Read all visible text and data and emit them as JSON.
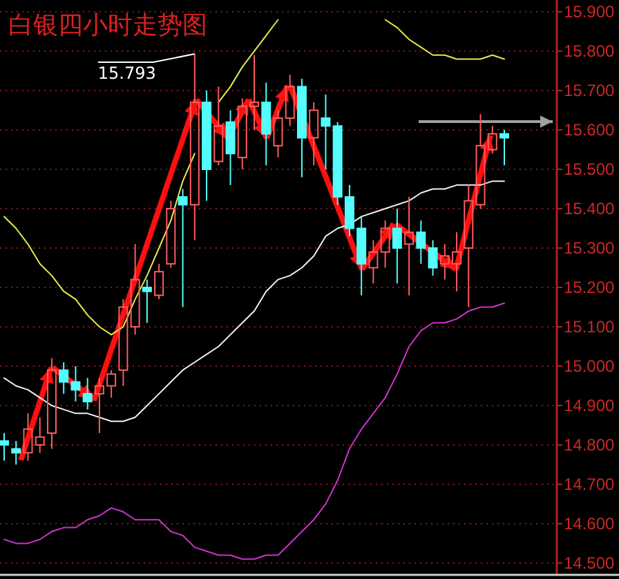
{
  "chart_data": {
    "type": "candlestick",
    "title": "白银四小时走势图",
    "categories": [
      null,
      null,
      null,
      null,
      null,
      null,
      null,
      null,
      null,
      null,
      null,
      null,
      null,
      null,
      null,
      null,
      null,
      null,
      null,
      null,
      null,
      null,
      null,
      null,
      null,
      null,
      null,
      null,
      null,
      null,
      null,
      null,
      null,
      null,
      null,
      null,
      null,
      null,
      null,
      null,
      null,
      null,
      null
    ],
    "ohlc": [
      [
        14.81,
        14.83,
        14.76,
        14.8
      ],
      [
        14.79,
        14.81,
        14.75,
        14.78
      ],
      [
        14.78,
        14.88,
        14.76,
        14.84
      ],
      [
        14.8,
        14.87,
        14.78,
        14.82
      ],
      [
        14.83,
        15.02,
        14.79,
        14.99
      ],
      [
        14.99,
        15.01,
        14.93,
        14.96
      ],
      [
        14.96,
        15.0,
        14.91,
        14.94
      ],
      [
        14.93,
        14.97,
        14.89,
        14.91
      ],
      [
        14.93,
        14.97,
        14.83,
        14.95
      ],
      [
        14.95,
        14.99,
        14.92,
        14.98
      ],
      [
        14.99,
        15.17,
        14.95,
        15.15
      ],
      [
        15.1,
        15.31,
        15.08,
        15.22
      ],
      [
        15.2,
        15.22,
        15.11,
        15.19
      ],
      [
        15.18,
        15.26,
        15.17,
        15.24
      ],
      [
        15.26,
        15.42,
        15.25,
        15.4
      ],
      [
        15.43,
        15.45,
        15.15,
        15.41
      ],
      [
        15.41,
        15.793,
        15.32,
        15.67
      ],
      [
        15.67,
        15.7,
        15.42,
        15.5
      ],
      [
        15.52,
        15.71,
        15.51,
        15.61
      ],
      [
        15.62,
        15.65,
        15.46,
        15.54
      ],
      [
        15.53,
        15.68,
        15.5,
        15.66
      ],
      [
        15.66,
        15.79,
        15.6,
        15.67
      ],
      [
        15.67,
        15.72,
        15.51,
        15.59
      ],
      [
        15.56,
        15.65,
        15.53,
        15.63
      ],
      [
        15.63,
        15.74,
        15.61,
        15.71
      ],
      [
        15.71,
        15.73,
        15.48,
        15.58
      ],
      [
        15.58,
        15.67,
        15.51,
        15.65
      ],
      [
        15.63,
        15.69,
        15.5,
        15.61
      ],
      [
        15.61,
        15.62,
        15.41,
        15.43
      ],
      [
        15.43,
        15.46,
        15.33,
        15.35
      ],
      [
        15.35,
        15.38,
        15.18,
        15.26
      ],
      [
        15.25,
        15.32,
        15.21,
        15.29
      ],
      [
        15.29,
        15.37,
        15.25,
        15.35
      ],
      [
        15.35,
        15.4,
        15.21,
        15.3
      ],
      [
        15.31,
        15.43,
        15.18,
        15.34
      ],
      [
        15.34,
        15.37,
        15.26,
        15.3
      ],
      [
        15.3,
        15.32,
        15.23,
        15.25
      ],
      [
        15.26,
        15.31,
        15.22,
        15.28
      ],
      [
        15.26,
        15.34,
        15.19,
        15.29
      ],
      [
        15.3,
        15.46,
        15.15,
        15.42
      ],
      [
        15.41,
        15.64,
        15.4,
        15.56
      ],
      [
        15.55,
        15.61,
        15.54,
        15.59
      ],
      [
        15.59,
        15.6,
        15.51,
        15.58
      ]
    ],
    "colors": [
      "#54fcfc",
      "#54fcfc",
      "#ff5c5c",
      "#ff5c5c",
      "#ff5c5c",
      "#54fcfc",
      "#54fcfc",
      "#54fcfc",
      "#ff5c5c",
      "#ff5c5c",
      "#ff5c5c",
      "#ff5c5c",
      "#54fcfc",
      "#ff5c5c",
      "#ff5c5c",
      "#54fcfc",
      "#ff5c5c",
      "#54fcfc",
      "#ff5c5c",
      "#54fcfc",
      "#ff5c5c",
      "#ff5c5c",
      "#54fcfc",
      "#ff5c5c",
      "#ff5c5c",
      "#54fcfc",
      "#ff5c5c",
      "#54fcfc",
      "#54fcfc",
      "#54fcfc",
      "#54fcfc",
      "#ff5c5c",
      "#ff5c5c",
      "#54fcfc",
      "#ff5c5c",
      "#54fcfc",
      "#54fcfc",
      "#ff5c5c",
      "#ff5c5c",
      "#ff5c5c",
      "#ff5c5c",
      "#ff5c5c",
      "#54fcfc"
    ],
    "series": [
      {
        "type": "line",
        "color": "#e8e84c",
        "values": [
          15.38,
          15.35,
          15.31,
          15.26,
          15.23,
          15.19,
          15.17,
          15.13,
          15.1,
          15.08,
          15.1,
          15.17,
          15.23,
          15.3,
          15.37,
          15.47,
          15.54,
          null,
          15.67,
          15.71,
          15.76,
          15.8,
          15.84,
          15.88,
          null,
          null,
          null,
          null,
          null,
          null,
          null,
          null,
          15.88,
          15.86,
          15.83,
          15.81,
          15.79,
          15.79,
          15.78,
          15.78,
          15.78,
          15.79,
          15.78
        ]
      },
      {
        "type": "line",
        "color": "#f0f0f0",
        "values": [
          14.97,
          14.95,
          14.94,
          14.92,
          14.9,
          14.89,
          14.88,
          14.88,
          14.87,
          14.86,
          14.86,
          14.87,
          14.9,
          14.93,
          14.96,
          14.99,
          15.01,
          15.03,
          15.05,
          15.08,
          15.11,
          15.14,
          15.19,
          15.22,
          15.23,
          15.25,
          15.28,
          15.33,
          15.35,
          15.36,
          15.38,
          15.39,
          15.4,
          15.41,
          15.42,
          15.44,
          15.45,
          15.45,
          15.46,
          15.46,
          15.46,
          15.47,
          15.47
        ]
      },
      {
        "type": "line",
        "color": "#cc33cc",
        "values": [
          14.56,
          14.55,
          14.55,
          14.56,
          14.58,
          14.59,
          14.59,
          14.61,
          14.62,
          14.64,
          14.63,
          14.61,
          14.61,
          14.61,
          14.58,
          14.57,
          14.54,
          14.53,
          14.52,
          14.52,
          14.51,
          14.51,
          14.52,
          14.52,
          14.55,
          14.58,
          14.61,
          14.65,
          14.71,
          14.79,
          14.84,
          14.88,
          14.92,
          14.98,
          15.05,
          15.09,
          15.11,
          15.11,
          15.12,
          15.14,
          15.15,
          15.15,
          15.16
        ]
      }
    ],
    "annotations": [
      "15.793"
    ],
    "ylim": [
      14.47,
      15.93
    ],
    "yticks": [
      {
        "value": 14.5,
        "label": "14.500"
      },
      {
        "value": 14.6,
        "label": "14.600"
      },
      {
        "value": 14.7,
        "label": "14.700"
      },
      {
        "value": 14.8,
        "label": "14.800"
      },
      {
        "value": 14.9,
        "label": "14.900"
      },
      {
        "value": 15.0,
        "label": "15.000"
      },
      {
        "value": 15.1,
        "label": "15.100"
      },
      {
        "value": 15.2,
        "label": "15.200"
      },
      {
        "value": 15.3,
        "label": "15.300"
      },
      {
        "value": 15.4,
        "label": "15.400"
      },
      {
        "value": 15.5,
        "label": "15.500"
      },
      {
        "value": 15.6,
        "label": "15.600"
      },
      {
        "value": 15.7,
        "label": "15.700"
      },
      {
        "value": 15.8,
        "label": "15.800"
      },
      {
        "value": 15.9,
        "label": "15.900"
      }
    ],
    "grid": "y",
    "tick_labels": "y"
  }
}
